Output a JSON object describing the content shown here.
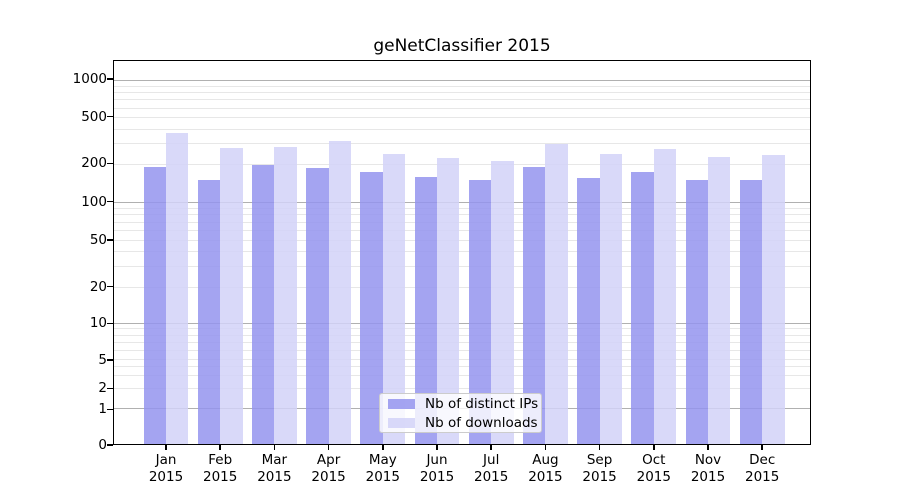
{
  "title": "geNetClassifier 2015",
  "chart_data": {
    "type": "bar",
    "title": "geNetClassifier 2015",
    "categories": [
      "Jan 2015",
      "Feb 2015",
      "Mar 2015",
      "Apr 2015",
      "May 2015",
      "Jun 2015",
      "Jul 2015",
      "Aug 2015",
      "Sep 2015",
      "Oct 2015",
      "Nov 2015",
      "Dec 2015"
    ],
    "months": [
      "Jan",
      "Feb",
      "Mar",
      "Apr",
      "May",
      "Jun",
      "Jul",
      "Aug",
      "Sep",
      "Oct",
      "Nov",
      "Dec"
    ],
    "year": "2015",
    "series": [
      {
        "name": "Nb of distinct IPs",
        "color": "rgba(148,148,238,0.85)",
        "apparent_color": "#a4a4f0",
        "values": [
          190,
          150,
          195,
          185,
          173,
          158,
          150,
          188,
          154,
          172,
          148,
          150
        ]
      },
      {
        "name": "Nb of downloads",
        "color": "rgba(210,210,248,0.85)",
        "apparent_color": "#d9d9fa",
        "values": [
          370,
          272,
          280,
          312,
          245,
          225,
          212,
          295,
          245,
          270,
          230,
          240
        ]
      }
    ],
    "yaxis": {
      "ticks": [
        0,
        1,
        2,
        5,
        10,
        20,
        50,
        100,
        200,
        500,
        1000
      ],
      "scale": "pseudo-log",
      "range": [
        0,
        1430
      ]
    },
    "xlabel": "",
    "ylabel": "",
    "grid": {
      "horizontal": true,
      "major_color": "#b0b0b0",
      "minor_color": "#e7e7e7"
    },
    "legend": {
      "position": "inside-bottom-center",
      "entries": [
        "Nb of distinct IPs",
        "Nb of downloads"
      ]
    }
  }
}
